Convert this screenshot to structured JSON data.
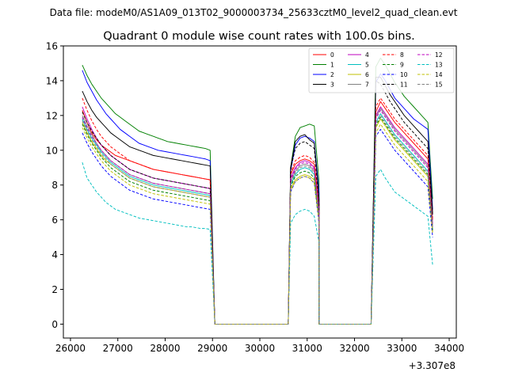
{
  "chart_data": {
    "type": "line",
    "suptitle": "Data file: modeM0/AS1A09_013T02_9000003734_25633cztM0_level2_quad_clean.evt",
    "title": "Quadrant 0 module wise count rates with 100.0s bins.",
    "xlabel": "",
    "ylabel": "",
    "x_offset_label": "+3.307e8",
    "xlim": [
      25850,
      34150
    ],
    "ylim": [
      -0.8,
      16
    ],
    "xticks": [
      26000,
      27000,
      28000,
      29000,
      30000,
      31000,
      32000,
      33000,
      34000
    ],
    "yticks": [
      0,
      2,
      4,
      6,
      8,
      10,
      12,
      14,
      16
    ],
    "legend_location": "upper-right",
    "legend_columns": 4,
    "segments": [
      {
        "name": "A",
        "x_start": 26250,
        "step": 100,
        "count": 28
      },
      {
        "name": "gap1",
        "x_start": 29050,
        "x_end": 30600,
        "value": 0
      },
      {
        "name": "B",
        "x_start": 30650,
        "step": 100,
        "count": 7
      },
      {
        "name": "gap2",
        "x_start": 31250,
        "x_end": 32350,
        "value": 0
      },
      {
        "name": "C",
        "x_start": 32450,
        "step": 100,
        "count": 13
      }
    ],
    "series": [
      {
        "name": "0",
        "color": "#ff0000",
        "dash": "solid",
        "segA": [
          12.3,
          11.6,
          11.0,
          10.6,
          10.3,
          10.1,
          9.9,
          9.7,
          9.6,
          9.5,
          9.4,
          9.3,
          9.2,
          9.1,
          9.0,
          8.9,
          8.85,
          8.8,
          8.75,
          8.7,
          8.65,
          8.6,
          8.55,
          8.5,
          8.45,
          8.4,
          8.35,
          8.3
        ],
        "segB": [
          8.6,
          9.2,
          9.4,
          9.5,
          9.4,
          9.2,
          6.8
        ],
        "segC": [
          12.2,
          12.8,
          12.4,
          12.0,
          11.6,
          11.3,
          11.0,
          10.7,
          10.4,
          10.1,
          9.8,
          9.5,
          6.0
        ]
      },
      {
        "name": "1",
        "color": "#008000",
        "dash": "solid",
        "segA": [
          14.9,
          14.3,
          13.8,
          13.4,
          13.0,
          12.7,
          12.4,
          12.1,
          11.9,
          11.7,
          11.5,
          11.3,
          11.1,
          11.0,
          10.9,
          10.8,
          10.7,
          10.6,
          10.5,
          10.45,
          10.4,
          10.35,
          10.3,
          10.25,
          10.2,
          10.15,
          10.1,
          10.0
        ],
        "segB": [
          9.0,
          10.8,
          11.3,
          11.4,
          11.5,
          11.4,
          8.2
        ],
        "segC": [
          14.8,
          15.3,
          14.9,
          14.4,
          13.9,
          13.5,
          13.1,
          12.8,
          12.5,
          12.2,
          11.9,
          11.6,
          7.2
        ]
      },
      {
        "name": "2",
        "color": "#0000ff",
        "dash": "solid",
        "segA": [
          14.6,
          13.9,
          13.4,
          12.9,
          12.5,
          12.1,
          11.8,
          11.5,
          11.2,
          11.0,
          10.8,
          10.6,
          10.4,
          10.3,
          10.2,
          10.1,
          10.0,
          9.95,
          9.9,
          9.85,
          9.8,
          9.75,
          9.7,
          9.65,
          9.6,
          9.55,
          9.5,
          9.4
        ],
        "segB": [
          8.8,
          10.3,
          10.7,
          10.8,
          10.7,
          10.5,
          7.6
        ],
        "segC": [
          13.9,
          14.4,
          14.0,
          13.5,
          13.0,
          12.7,
          12.4,
          12.1,
          11.8,
          11.6,
          11.4,
          11.2,
          6.6
        ]
      },
      {
        "name": "3",
        "color": "#000000",
        "dash": "solid",
        "segA": [
          13.4,
          12.8,
          12.3,
          11.9,
          11.6,
          11.3,
          11.0,
          10.8,
          10.6,
          10.4,
          10.2,
          10.1,
          10.0,
          9.9,
          9.8,
          9.7,
          9.65,
          9.6,
          9.55,
          9.5,
          9.45,
          9.4,
          9.35,
          9.3,
          9.25,
          9.2,
          9.15,
          9.1
        ],
        "segB": [
          9.0,
          10.5,
          10.8,
          10.9,
          10.6,
          10.4,
          7.2
        ],
        "segC": [
          14.2,
          14.2,
          13.7,
          13.2,
          12.8,
          12.4,
          12.0,
          11.7,
          11.4,
          11.1,
          10.8,
          10.5,
          6.4
        ]
      },
      {
        "name": "4",
        "color": "#bf00bf",
        "dash": "solid",
        "segA": [
          12.5,
          11.8,
          11.2,
          10.7,
          10.3,
          10.0,
          9.7,
          9.5,
          9.3,
          9.1,
          8.9,
          8.8,
          8.7,
          8.6,
          8.5,
          8.4,
          8.35,
          8.3,
          8.25,
          8.2,
          8.15,
          8.1,
          8.05,
          8.0,
          7.95,
          7.9,
          7.85,
          7.8
        ],
        "segB": [
          8.4,
          9.0,
          9.3,
          9.4,
          9.3,
          9.0,
          6.6
        ],
        "segC": [
          12.0,
          12.5,
          12.1,
          11.7,
          11.3,
          11.0,
          10.7,
          10.4,
          10.1,
          9.8,
          9.5,
          9.2,
          5.8
        ]
      },
      {
        "name": "5",
        "color": "#00bfbf",
        "dash": "solid",
        "segA": [
          11.8,
          11.2,
          10.7,
          10.3,
          9.9,
          9.6,
          9.3,
          9.1,
          8.9,
          8.7,
          8.5,
          8.4,
          8.3,
          8.2,
          8.1,
          8.0,
          7.95,
          7.9,
          7.85,
          7.8,
          7.75,
          7.7,
          7.65,
          7.6,
          7.55,
          7.5,
          7.45,
          7.4
        ],
        "segB": [
          8.0,
          8.6,
          8.9,
          9.0,
          8.9,
          8.6,
          6.2
        ],
        "segC": [
          11.6,
          12.1,
          11.7,
          11.3,
          10.9,
          10.6,
          10.3,
          10.0,
          9.7,
          9.4,
          9.1,
          8.8,
          5.5
        ]
      },
      {
        "name": "6",
        "color": "#bfbf00",
        "dash": "solid",
        "segA": [
          11.6,
          11.0,
          10.5,
          10.1,
          9.7,
          9.4,
          9.2,
          9.0,
          8.8,
          8.6,
          8.4,
          8.3,
          8.2,
          8.1,
          8.0,
          7.9,
          7.85,
          7.8,
          7.75,
          7.7,
          7.65,
          7.6,
          7.55,
          7.5,
          7.45,
          7.4,
          7.35,
          7.3
        ],
        "segB": [
          7.8,
          8.3,
          8.5,
          8.6,
          8.5,
          8.3,
          6.0
        ],
        "segC": [
          11.3,
          11.8,
          11.4,
          11.0,
          10.6,
          10.3,
          10.0,
          9.7,
          9.4,
          9.1,
          8.8,
          8.5,
          5.3
        ]
      },
      {
        "name": "7",
        "color": "#808080",
        "dash": "solid",
        "segA": [
          12.0,
          11.4,
          10.9,
          10.4,
          10.0,
          9.7,
          9.4,
          9.2,
          9.0,
          8.8,
          8.6,
          8.5,
          8.4,
          8.3,
          8.2,
          8.1,
          8.05,
          8.0,
          7.95,
          7.9,
          7.85,
          7.8,
          7.75,
          7.7,
          7.65,
          7.6,
          7.55,
          7.5
        ],
        "segB": [
          8.2,
          8.8,
          9.1,
          9.2,
          9.1,
          8.8,
          6.4
        ],
        "segC": [
          11.9,
          12.4,
          12.0,
          11.6,
          11.2,
          10.9,
          10.6,
          10.3,
          10.0,
          9.7,
          9.4,
          9.1,
          5.7
        ]
      },
      {
        "name": "8",
        "color": "#ff0000",
        "dash": "dashed",
        "segA": [
          13.0,
          12.3,
          11.7,
          11.2,
          10.8,
          10.5,
          10.2,
          10.0,
          9.8,
          9.6,
          9.4,
          9.3,
          9.2,
          9.1,
          9.0,
          8.9,
          8.85,
          8.8,
          8.75,
          8.7,
          8.65,
          8.6,
          8.55,
          8.5,
          8.45,
          8.4,
          8.35,
          8.3
        ],
        "segB": [
          8.7,
          9.4,
          9.6,
          9.7,
          9.6,
          9.3,
          6.9
        ],
        "segC": [
          12.5,
          13.0,
          12.6,
          12.2,
          11.8,
          11.5,
          11.2,
          10.9,
          10.6,
          10.3,
          10.0,
          9.7,
          6.1
        ]
      },
      {
        "name": "9",
        "color": "#008000",
        "dash": "dashed",
        "segA": [
          11.5,
          10.9,
          10.4,
          10.0,
          9.6,
          9.3,
          9.0,
          8.8,
          8.6,
          8.4,
          8.2,
          8.1,
          8.0,
          7.9,
          7.8,
          7.7,
          7.65,
          7.6,
          7.55,
          7.5,
          7.45,
          7.4,
          7.35,
          7.3,
          7.25,
          7.2,
          7.15,
          7.1
        ],
        "segB": [
          7.9,
          8.5,
          8.7,
          8.8,
          8.7,
          8.4,
          6.1
        ],
        "segC": [
          11.4,
          11.9,
          11.5,
          11.1,
          10.7,
          10.4,
          10.1,
          9.8,
          9.5,
          9.2,
          8.9,
          8.6,
          5.4
        ]
      },
      {
        "name": "10",
        "color": "#0000ff",
        "dash": "dashed",
        "segA": [
          11.0,
          10.4,
          9.9,
          9.5,
          9.1,
          8.8,
          8.5,
          8.3,
          8.1,
          7.9,
          7.7,
          7.6,
          7.5,
          7.4,
          7.3,
          7.2,
          7.15,
          7.1,
          7.05,
          7.0,
          6.95,
          6.9,
          6.85,
          6.8,
          6.75,
          6.7,
          6.65,
          6.6
        ],
        "segB": [
          7.6,
          8.2,
          8.4,
          8.5,
          8.4,
          8.1,
          5.8
        ],
        "segC": [
          10.8,
          11.2,
          10.8,
          10.4,
          10.0,
          9.7,
          9.4,
          9.1,
          8.8,
          8.5,
          8.2,
          7.9,
          5.0
        ]
      },
      {
        "name": "11",
        "color": "#000000",
        "dash": "dashed",
        "segA": [
          12.2,
          11.6,
          11.1,
          10.7,
          10.3,
          10.0,
          9.7,
          9.5,
          9.3,
          9.1,
          8.9,
          8.8,
          8.7,
          8.6,
          8.5,
          8.4,
          8.35,
          8.3,
          8.25,
          8.2,
          8.15,
          8.1,
          8.05,
          8.0,
          7.95,
          7.9,
          7.85,
          7.8
        ],
        "segB": [
          8.9,
          10.1,
          10.4,
          10.5,
          10.3,
          10.1,
          7.0
        ],
        "segC": [
          14.0,
          13.8,
          13.3,
          12.8,
          12.4,
          12.0,
          11.6,
          11.3,
          11.0,
          10.7,
          10.4,
          10.1,
          6.3
        ]
      },
      {
        "name": "12",
        "color": "#bf00bf",
        "dash": "dashed",
        "segA": [
          11.9,
          11.3,
          10.8,
          10.4,
          10.0,
          9.7,
          9.4,
          9.2,
          9.0,
          8.8,
          8.6,
          8.5,
          8.4,
          8.3,
          8.2,
          8.1,
          8.05,
          8.0,
          7.95,
          7.9,
          7.85,
          7.8,
          7.75,
          7.7,
          7.65,
          7.6,
          7.55,
          7.5
        ],
        "segB": [
          8.3,
          8.9,
          9.2,
          9.3,
          9.2,
          8.9,
          6.5
        ],
        "segC": [
          11.8,
          12.3,
          11.9,
          11.5,
          11.1,
          10.8,
          10.5,
          10.2,
          9.9,
          9.6,
          9.3,
          9.0,
          5.6
        ]
      },
      {
        "name": "13",
        "color": "#00bfbf",
        "dash": "dashed",
        "segA": [
          9.3,
          8.4,
          8.0,
          7.6,
          7.3,
          7.0,
          6.8,
          6.6,
          6.5,
          6.4,
          6.3,
          6.2,
          6.1,
          6.05,
          6.0,
          5.95,
          5.9,
          5.85,
          5.8,
          5.75,
          5.7,
          5.65,
          5.6,
          5.6,
          5.55,
          5.5,
          5.5,
          5.45
        ],
        "segB": [
          5.8,
          6.3,
          6.5,
          6.6,
          6.5,
          6.2,
          4.7
        ],
        "segC": [
          8.5,
          8.9,
          8.4,
          8.0,
          7.6,
          7.4,
          7.2,
          7.0,
          6.8,
          6.6,
          6.4,
          6.2,
          3.4
        ]
      },
      {
        "name": "14",
        "color": "#bfbf00",
        "dash": "dashed",
        "segA": [
          11.3,
          10.7,
          10.2,
          9.8,
          9.4,
          9.1,
          8.8,
          8.6,
          8.4,
          8.2,
          8.0,
          7.9,
          7.8,
          7.7,
          7.6,
          7.5,
          7.45,
          7.4,
          7.35,
          7.3,
          7.25,
          7.2,
          7.15,
          7.1,
          7.05,
          7.0,
          6.95,
          6.9
        ],
        "segB": [
          7.7,
          8.2,
          8.4,
          8.5,
          8.4,
          8.1,
          5.9
        ],
        "segC": [
          11.0,
          11.5,
          11.1,
          10.7,
          10.3,
          10.0,
          9.7,
          9.4,
          9.1,
          8.8,
          8.5,
          8.2,
          5.2
        ]
      },
      {
        "name": "15",
        "color": "#808080",
        "dash": "dashed",
        "segA": [
          11.7,
          11.1,
          10.6,
          10.2,
          9.8,
          9.5,
          9.2,
          9.0,
          8.8,
          8.6,
          8.4,
          8.3,
          8.2,
          8.1,
          8.0,
          7.9,
          7.85,
          7.8,
          7.75,
          7.7,
          7.65,
          7.6,
          7.55,
          7.5,
          7.45,
          7.4,
          7.35,
          7.3
        ],
        "segB": [
          8.1,
          8.7,
          9.0,
          9.1,
          9.0,
          8.7,
          6.3
        ],
        "segC": [
          11.5,
          12.0,
          11.6,
          11.2,
          10.8,
          10.5,
          10.2,
          9.9,
          9.6,
          9.3,
          9.0,
          8.7,
          5.5
        ]
      }
    ]
  }
}
